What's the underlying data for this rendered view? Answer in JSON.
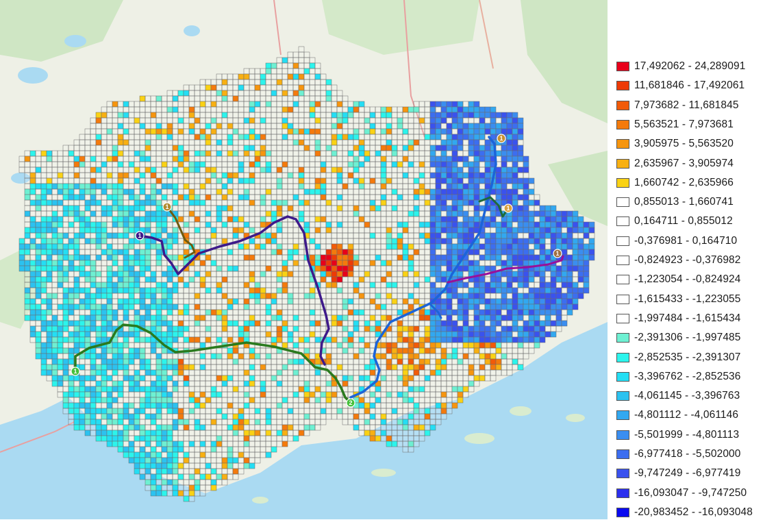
{
  "legend": {
    "items": [
      {
        "label": "17,492062 - 24,289091",
        "color": "#e8001a"
      },
      {
        "label": "11,681846 - 17,492061",
        "color": "#ee3a06"
      },
      {
        "label": "7,973682 - 11,681845",
        "color": "#f25a08"
      },
      {
        "label": "5,563521 - 7,973681",
        "color": "#f47a0c"
      },
      {
        "label": "3,905975 - 5,563520",
        "color": "#f6950e"
      },
      {
        "label": "2,635967 - 3,905974",
        "color": "#f8b012"
      },
      {
        "label": "1,660742 - 2,635966",
        "color": "#fad214"
      },
      {
        "label": "0,855013 - 1,660741",
        "color": "#ffffff"
      },
      {
        "label": "0,164711 - 0,855012",
        "color": "#ffffff"
      },
      {
        "label": "-0,376981 - 0,164710",
        "color": "#ffffff"
      },
      {
        "label": "-0,824923 - -0,376982",
        "color": "#ffffff"
      },
      {
        "label": "-1,223054 - -0,824924",
        "color": "#ffffff"
      },
      {
        "label": "-1,615433 - -1,223055",
        "color": "#ffffff"
      },
      {
        "label": "-1,997484 - -1,615434",
        "color": "#ffffff"
      },
      {
        "label": "-2,391306 - -1,997485",
        "color": "#6ef0d2"
      },
      {
        "label": "-2,852535 - -2,391307",
        "color": "#2cf4ec"
      },
      {
        "label": "-3,396762 - -2,852536",
        "color": "#24def4"
      },
      {
        "label": "-4,061145 - -3,396763",
        "color": "#2cc2f0"
      },
      {
        "label": "-4,801112 - -4,061146",
        "color": "#32a8f0"
      },
      {
        "label": "-5,501999 - -4,801113",
        "color": "#3a8ef0"
      },
      {
        "label": "-6,977418 - -5,502000",
        "color": "#3c6ef0"
      },
      {
        "label": "-9,747249 - -6,977419",
        "color": "#3a52ee"
      },
      {
        "label": "-16,093047 - -9,747250",
        "color": "#2c30ee"
      },
      {
        "label": "-20,983452 - -16,093048",
        "color": "#0a0af0"
      }
    ]
  },
  "map": {
    "basemap_land": "#eef0e6",
    "basemap_water": "#aadaf2",
    "routes": [
      {
        "name": "route-purple",
        "color": "#3e1a8a",
        "marker": "1",
        "marker_color": "#3e1a8a"
      },
      {
        "name": "route-olive",
        "color": "#6e5a10",
        "marker": "1",
        "marker_color": "#b08a30"
      },
      {
        "name": "route-green-west",
        "color": "#2a7a1e",
        "marker": "1",
        "marker_color": "#44c03a"
      },
      {
        "name": "route-green-south",
        "color": "#2a7a1e",
        "marker": "2",
        "marker_color": "#44c03a"
      },
      {
        "name": "route-blue",
        "color": "#1c64d8",
        "marker": "1",
        "marker_color": "#c89030"
      },
      {
        "name": "route-darkgreen-east",
        "color": "#1e6a3a",
        "marker": "1",
        "marker_color": "#d8a040"
      },
      {
        "name": "route-magenta",
        "color": "#98109a",
        "marker": "1",
        "marker_color": "#a07040"
      }
    ]
  }
}
